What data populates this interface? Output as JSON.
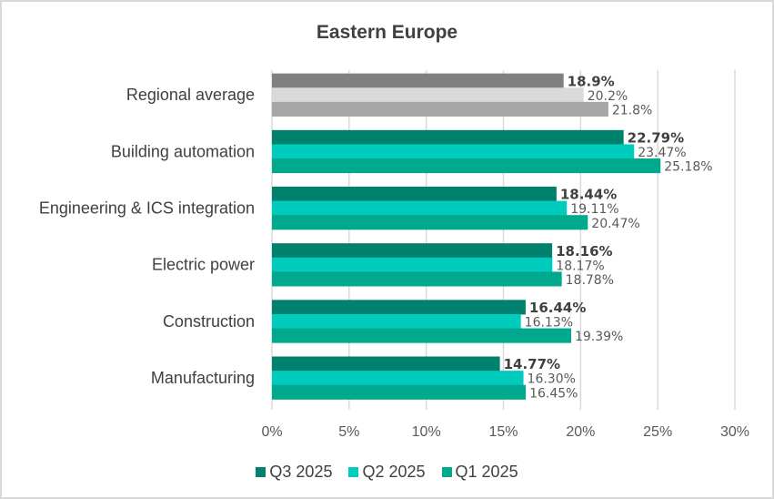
{
  "chart_data": {
    "type": "bar",
    "orientation": "horizontal",
    "title": "Eastern Europe",
    "categories": [
      "Regional average",
      "Building automation",
      "Engineering & ICS integration",
      "Electric power",
      "Construction",
      "Manufacturing"
    ],
    "series": [
      {
        "name": "Q3 2025",
        "color": "#00816D",
        "values": [
          18.9,
          22.79,
          18.44,
          18.16,
          16.44,
          14.77
        ],
        "labels": [
          "18.9%",
          "22.79%",
          "18.44%",
          "18.16%",
          "16.44%",
          "14.77%"
        ]
      },
      {
        "name": "Q2 2025",
        "color": "#00CCBE",
        "values": [
          20.2,
          23.47,
          19.11,
          18.17,
          16.13,
          16.3
        ],
        "labels": [
          "20.2%",
          "23.47%",
          "19.11%",
          "18.17%",
          "16.13%",
          "16.30%"
        ]
      },
      {
        "name": "Q1 2025",
        "color": "#00A88E",
        "values": [
          21.8,
          25.18,
          20.47,
          18.78,
          19.39,
          16.45
        ],
        "labels": [
          "21.8%",
          "25.18%",
          "20.47%",
          "18.78%",
          "19.39%",
          "16.45%"
        ]
      }
    ],
    "regional_average_colors": [
      "#808080",
      "#D9D9D9",
      "#A6A6A6"
    ],
    "xlim": [
      0,
      30
    ],
    "xticks": [
      0,
      5,
      10,
      15,
      20,
      25,
      30
    ],
    "xtick_labels": [
      "0%",
      "5%",
      "10%",
      "15%",
      "20%",
      "25%",
      "30%"
    ],
    "grid": true,
    "legend_position": "bottom",
    "xlabel": "",
    "ylabel": ""
  }
}
